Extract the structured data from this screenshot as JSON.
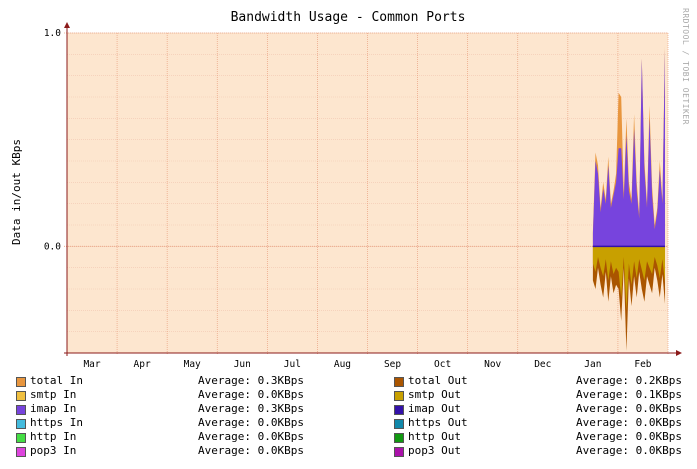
{
  "chart_data": {
    "type": "area",
    "title": "Bandwidth Usage - Common Ports",
    "ylabel": "Data in/out KBps",
    "watermark": "RRDTOOL / TOBI OETIKER",
    "x_ticks": [
      "Mar",
      "Apr",
      "May",
      "Jun",
      "Jul",
      "Aug",
      "Sep",
      "Oct",
      "Nov",
      "Dec",
      "Jan",
      "Feb"
    ],
    "y_ticks": [
      "1.0",
      "0.0"
    ],
    "ylim": [
      -0.5,
      1.0
    ],
    "grid": true,
    "colors": {
      "plot_bg": "#fde6cf",
      "grid_major": "#e8a080",
      "grid_minor": "#f3c7b0",
      "axis": "#8b1a1a"
    },
    "series": [
      {
        "name": "total In",
        "values": [
          0.07,
          0.44,
          0.38,
          0.18,
          0.3,
          0.22,
          0.42,
          0.2,
          0.26,
          0.34,
          0.72,
          0.7,
          0.25,
          0.6,
          0.3,
          0.22,
          0.62,
          0.3,
          0.15,
          0.88,
          0.4,
          0.2,
          0.66,
          0.28,
          0.1,
          0.18,
          0.4,
          0.22,
          0.94
        ],
        "color": "#e8963e"
      },
      {
        "name": "smtp In",
        "values": [
          0.0,
          0.0,
          0.0,
          0.0,
          0.0,
          0.0,
          0.0,
          0.0,
          0.0,
          0.0,
          0.0,
          0.0,
          0.0,
          0.0,
          0.0,
          0.0,
          0.0,
          0.0,
          0.0,
          0.0,
          0.0,
          0.0,
          0.0,
          0.0,
          0.0,
          0.0,
          0.0,
          0.0,
          0.0
        ],
        "color": "#f0c040"
      },
      {
        "name": "imap In",
        "values": [
          0.06,
          0.4,
          0.34,
          0.16,
          0.27,
          0.2,
          0.38,
          0.18,
          0.24,
          0.3,
          0.46,
          0.46,
          0.22,
          0.52,
          0.26,
          0.2,
          0.55,
          0.26,
          0.13,
          0.88,
          0.36,
          0.18,
          0.6,
          0.24,
          0.08,
          0.16,
          0.36,
          0.2,
          0.92
        ],
        "color": "#7744dd"
      },
      {
        "name": "https In",
        "values": [
          0,
          0,
          0,
          0,
          0,
          0,
          0,
          0,
          0,
          0,
          0,
          0,
          0,
          0,
          0,
          0,
          0,
          0,
          0,
          0,
          0,
          0,
          0,
          0,
          0,
          0,
          0,
          0,
          0
        ],
        "color": "#44bbdd"
      },
      {
        "name": "http In",
        "values": [
          0,
          0,
          0,
          0,
          0,
          0,
          0,
          0,
          0,
          0,
          0,
          0,
          0,
          0,
          0,
          0,
          0,
          0,
          0,
          0,
          0,
          0,
          0,
          0,
          0,
          0,
          0,
          0,
          0
        ],
        "color": "#44dd44"
      },
      {
        "name": "pop3 In",
        "values": [
          0,
          0,
          0,
          0,
          0,
          0,
          0,
          0,
          0,
          0,
          0,
          0,
          0,
          0,
          0,
          0,
          0,
          0,
          0,
          0,
          0,
          0,
          0,
          0,
          0,
          0,
          0,
          0,
          0
        ],
        "color": "#dd44dd"
      },
      {
        "name": "total Out",
        "values": [
          -0.16,
          -0.2,
          -0.1,
          -0.18,
          -0.24,
          -0.12,
          -0.26,
          -0.14,
          -0.22,
          -0.18,
          -0.2,
          -0.35,
          -0.1,
          -0.49,
          -0.15,
          -0.28,
          -0.14,
          -0.24,
          -0.12,
          -0.2,
          -0.26,
          -0.14,
          -0.18,
          -0.22,
          -0.1,
          -0.16,
          -0.24,
          -0.13,
          -0.27
        ],
        "color": "#aa5500"
      },
      {
        "name": "smtp Out",
        "values": [
          -0.08,
          -0.12,
          -0.05,
          -0.1,
          -0.14,
          -0.06,
          -0.16,
          -0.07,
          -0.13,
          -0.1,
          -0.12,
          -0.24,
          -0.05,
          -0.3,
          -0.08,
          -0.18,
          -0.07,
          -0.15,
          -0.06,
          -0.11,
          -0.16,
          -0.07,
          -0.1,
          -0.13,
          -0.05,
          -0.09,
          -0.15,
          -0.06,
          -0.17
        ],
        "color": "#c8a000"
      },
      {
        "name": "imap Out",
        "values": [
          0,
          0,
          0,
          0,
          0,
          0,
          0,
          0,
          0,
          0,
          0,
          0,
          0,
          0,
          0,
          0,
          0,
          0,
          0,
          0,
          0,
          0,
          0,
          0,
          0,
          0,
          0,
          0,
          0
        ],
        "color": "#3311aa"
      },
      {
        "name": "https Out",
        "values": [
          0,
          0,
          0,
          0,
          0,
          0,
          0,
          0,
          0,
          0,
          0,
          0,
          0,
          0,
          0,
          0,
          0,
          0,
          0,
          0,
          0,
          0,
          0,
          0,
          0,
          0,
          0,
          0,
          0
        ],
        "color": "#1188aa"
      },
      {
        "name": "http Out",
        "values": [
          0,
          0,
          0,
          0,
          0,
          0,
          0,
          0,
          0,
          0,
          0,
          0,
          0,
          0,
          0,
          0,
          0,
          0,
          0,
          0,
          0,
          0,
          0,
          0,
          0,
          0,
          0,
          0,
          0
        ],
        "color": "#119911"
      },
      {
        "name": "pop3 Out",
        "values": [
          0,
          0,
          0,
          0,
          0,
          0,
          0,
          0,
          0,
          0,
          0,
          0,
          0,
          0,
          0,
          0,
          0,
          0,
          0,
          0,
          0,
          0,
          0,
          0,
          0,
          0,
          0,
          0,
          0
        ],
        "color": "#aa11aa"
      }
    ],
    "data_window": [
      "Jan",
      "Feb"
    ]
  },
  "legend": [
    {
      "name": "total In",
      "avg": "Average: 0.3KBps",
      "color": "#e8963e"
    },
    {
      "name": "total Out",
      "avg": "Average: 0.2KBps",
      "color": "#aa5500"
    },
    {
      "name": "smtp In",
      "avg": "Average: 0.0KBps",
      "color": "#f0c040"
    },
    {
      "name": "smtp Out",
      "avg": "Average: 0.1KBps",
      "color": "#c8a000"
    },
    {
      "name": "imap In",
      "avg": "Average: 0.3KBps",
      "color": "#7744dd"
    },
    {
      "name": "imap Out",
      "avg": "Average: 0.0KBps",
      "color": "#3311aa"
    },
    {
      "name": "https In",
      "avg": "Average: 0.0KBps",
      "color": "#44bbdd"
    },
    {
      "name": "https Out",
      "avg": "Average: 0.0KBps",
      "color": "#1188aa"
    },
    {
      "name": "http In",
      "avg": "Average: 0.0KBps",
      "color": "#44dd44"
    },
    {
      "name": "http Out",
      "avg": "Average: 0.0KBps",
      "color": "#119911"
    },
    {
      "name": "pop3 In",
      "avg": "Average: 0.0KBps",
      "color": "#dd44dd"
    },
    {
      "name": "pop3 Out",
      "avg": "Average: 0.0KBps",
      "color": "#aa11aa"
    }
  ]
}
